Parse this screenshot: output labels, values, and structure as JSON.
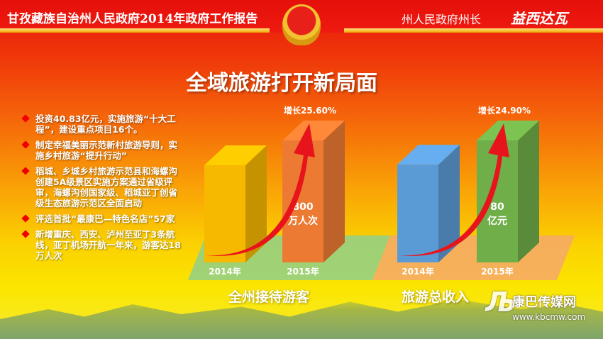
{
  "header": {
    "report_title": "甘孜藏族自治州人民政府2014年政府工作报告",
    "speaker_role": "州人民政府州长",
    "signature": "益西达瓦"
  },
  "slide_title": "全域旅游打开新局面",
  "bullets": [
    "投资40.83亿元，实施旅游“十大工程”，建设重点项目16个。",
    "制定幸福美丽示范新村旅游导则，实施乡村旅游“提升行动”",
    "稻城、乡城乡村旅游示范县和海螺沟创建5A级景区实施方案通过省级评审，海螺沟创国家级、稻城亚丁创省级生态旅游示范区全面启动",
    "评选首批“最康巴—特色名店”57家",
    "新增重庆、西安、泸州至亚丁3条航线，亚丁机场开航一年来，游客达18万人次"
  ],
  "chart_data": [
    {
      "type": "bar",
      "title": "全州接待游客",
      "categories": [
        "2014年",
        "2015年"
      ],
      "values": [
        637,
        800
      ],
      "value_label": "800\n万人次",
      "value_label_lines": [
        "800",
        "万人次"
      ],
      "growth_label": "增长25.60%",
      "colors": [
        "#f7b800",
        "#ec7a32"
      ],
      "floor_color": "#8fd08a"
    },
    {
      "type": "bar",
      "title": "旅游总收入",
      "categories": [
        "2014年",
        "2015年"
      ],
      "values": [
        64.1,
        80
      ],
      "value_label_lines": [
        "80",
        "亿元"
      ],
      "growth_label": "增长24.90%",
      "colors": [
        "#5b9bd5",
        "#6fae48"
      ],
      "floor_color": "#f5a86a"
    }
  ],
  "watermark": {
    "logo": "康巴传媒网",
    "name": "康巴传媒网",
    "url": "www.kbcmw.com"
  },
  "colors": {
    "arrow": "#e8141c",
    "text": "#ffffff",
    "bullet": "#e00000"
  }
}
